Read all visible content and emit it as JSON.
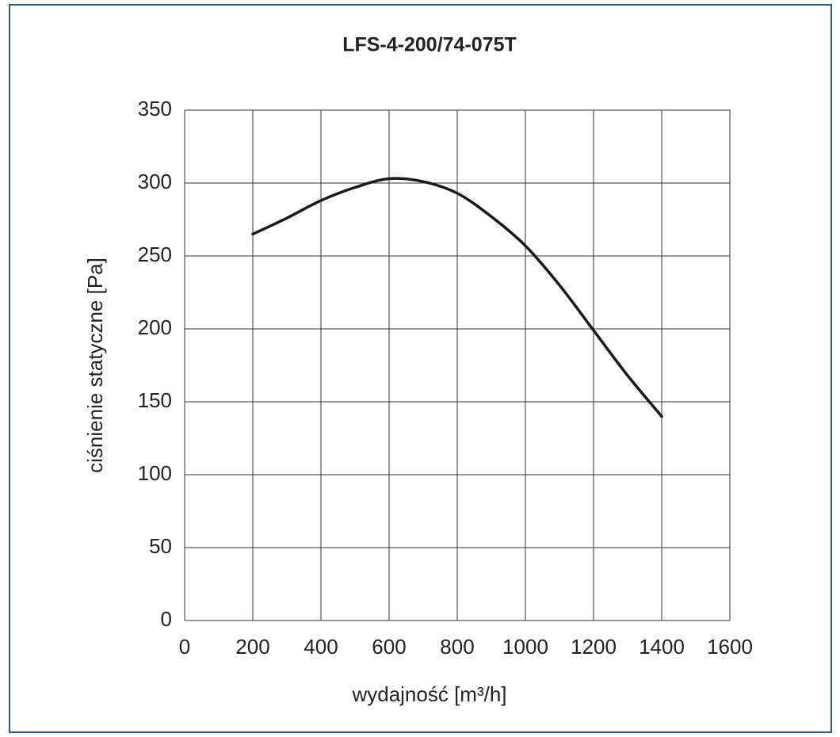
{
  "chart_data": {
    "type": "line",
    "title": "LFS-4-200/74-075T",
    "xlabel": "wydajność [m³/h]",
    "ylabel": "ciśnienie statyczne [Pa]",
    "x": [
      200,
      300,
      400,
      500,
      600,
      700,
      800,
      900,
      1000,
      1100,
      1200,
      1300,
      1400
    ],
    "values": [
      265,
      276,
      288,
      297,
      303,
      301,
      293,
      277,
      257,
      230,
      199,
      168,
      140
    ],
    "color": "#1a1a1a",
    "xlim": [
      0,
      1600
    ],
    "xticks": [
      0,
      200,
      400,
      600,
      800,
      1000,
      1200,
      1400,
      1600
    ],
    "ylim": [
      0,
      350
    ],
    "yticks": [
      0,
      50,
      100,
      150,
      200,
      250,
      300,
      350
    ],
    "grid": true
  }
}
